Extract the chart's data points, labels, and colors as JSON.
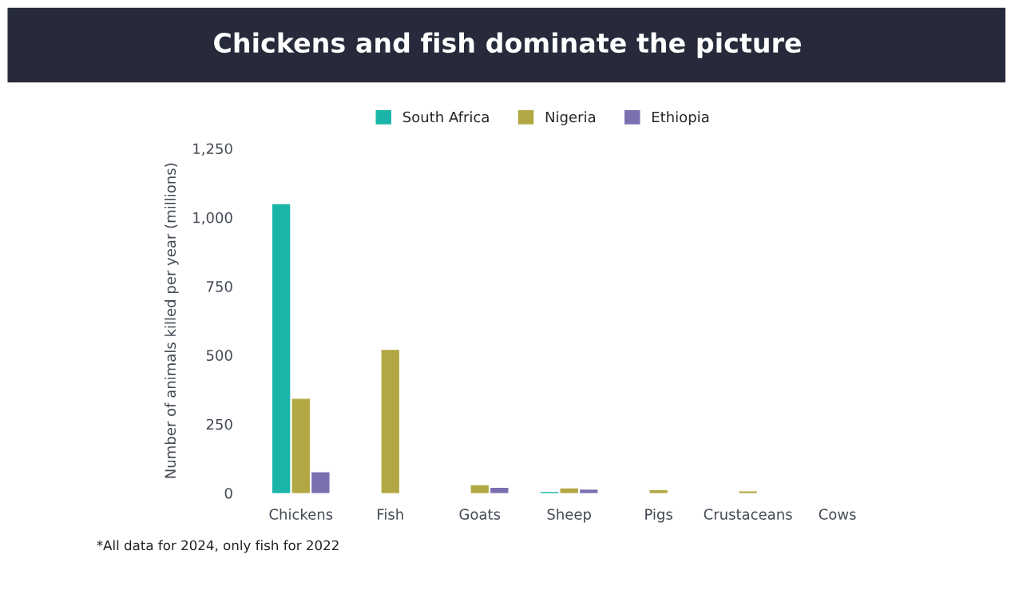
{
  "chart_data": {
    "type": "bar",
    "title": "Chickens and fish dominate the picture",
    "ylabel": "Number of animals killed per year (millions)",
    "categories": [
      "Chickens",
      "Fish",
      "Goats",
      "Sheep",
      "Pigs",
      "Crustaceans",
      "Cows"
    ],
    "series": [
      {
        "name": "South Africa",
        "color": "#1ab5a8",
        "values": [
          1046,
          null,
          null,
          2,
          null,
          null,
          null
        ]
      },
      {
        "name": "Nigeria",
        "color": "#b2a843",
        "values": [
          340,
          517,
          26,
          15,
          8,
          4,
          null
        ]
      },
      {
        "name": "Ethiopia",
        "color": "#7b6fb0",
        "values": [
          73,
          null,
          17,
          10,
          null,
          null,
          null
        ]
      }
    ],
    "ylim": [
      0,
      1250
    ],
    "yticks": [
      0,
      {
        "value": 250,
        "label": "250"
      },
      {
        "value": 500,
        "label": "500"
      },
      {
        "value": 750,
        "label": "750"
      },
      {
        "value": 1000,
        "label": "1,000"
      },
      {
        "value": 1250,
        "label": "1,250"
      }
    ],
    "grid": false,
    "legend": "top",
    "annotations": [
      "*All data for 2024, only fish for 2022"
    ]
  }
}
